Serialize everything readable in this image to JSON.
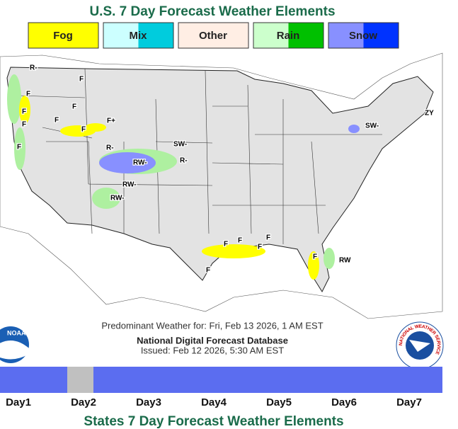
{
  "header": {
    "title": "U.S. 7 Day Forecast Weather Elements"
  },
  "legend": [
    "Fog",
    "Mix",
    "Other",
    "Rain",
    "Snow"
  ],
  "map": {
    "labels": [
      "R-",
      "F",
      "F",
      "F",
      "F",
      "F",
      "F",
      "F",
      "F+",
      "F",
      "SW-",
      "R-",
      "RW-",
      "R-",
      "RW-",
      "RW-",
      "SW-",
      "ZY",
      "F",
      "F",
      "F",
      "F",
      "F",
      "F",
      "RW"
    ]
  },
  "info": {
    "predominant": "Predominant Weather for: Fri, Feb 13 2026, 1 AM EST",
    "database": "National Digital Forecast Database",
    "issued": "Issued: Feb 12 2026, 5:30 AM EST"
  },
  "logos": {
    "noaa": "NOAA",
    "nws": "NATIONAL WEATHER SERVICE"
  },
  "days": [
    "Day1",
    "Day2",
    "Day3",
    "Day4",
    "Day5",
    "Day6",
    "Day7"
  ],
  "footer": {
    "title": "States 7 Day Forecast Weather Elements"
  }
}
